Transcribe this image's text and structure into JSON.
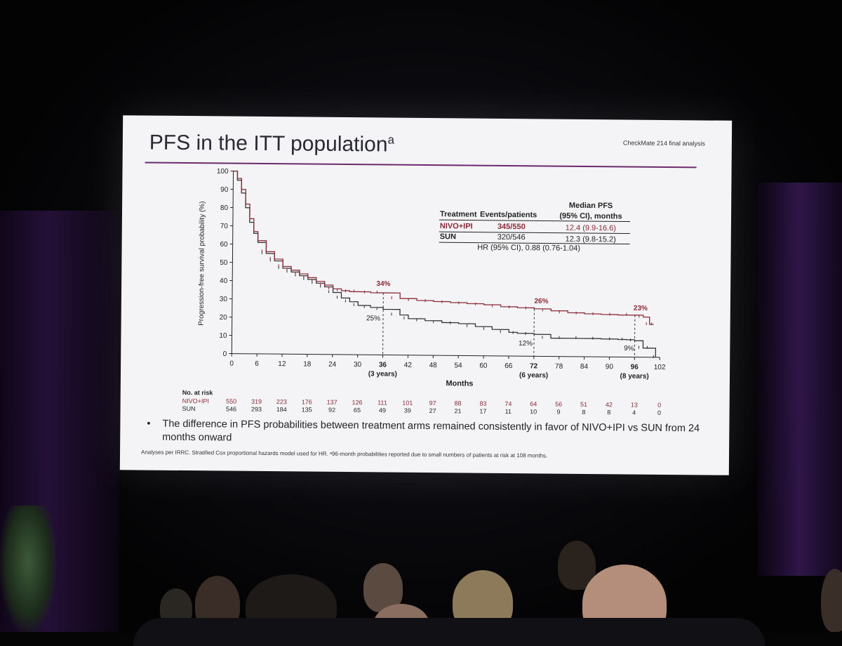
{
  "slide": {
    "title": "PFS in the ITT population",
    "title_sup": "a",
    "header_right": "CheckMate 214 final analysis",
    "bullet": "The difference in PFS probabilities between treatment arms remained consistently in favor of NIVO+IPI vs SUN from 24 months onward",
    "footnote": "Analyses per IRRC. Stratified Cox proportional hazards model used for HR. ᵃ96-month probabilities reported due to small numbers of patients at risk at 108 months."
  },
  "chart_data": {
    "type": "line",
    "title": "",
    "xlabel": "Months",
    "ylabel": "Progression-free survival probability (%)",
    "xlim": [
      0,
      102
    ],
    "ylim": [
      0,
      100
    ],
    "xticks": [
      0,
      6,
      12,
      18,
      24,
      30,
      36,
      42,
      48,
      54,
      60,
      66,
      72,
      78,
      84,
      90,
      96,
      102
    ],
    "yticks": [
      0,
      10,
      20,
      30,
      40,
      50,
      60,
      70,
      80,
      90,
      100
    ],
    "year_labels": [
      {
        "x": 36,
        "text": "(3 years)"
      },
      {
        "x": 72,
        "text": "(6 years)"
      },
      {
        "x": 96,
        "text": "(8 years)"
      }
    ],
    "colors": {
      "nivo": "#8b2a36",
      "sun": "#333333",
      "rule": "#6b2a6e"
    },
    "series": [
      {
        "name": "NIVO+IPI",
        "x": [
          0,
          1,
          2,
          3,
          4,
          5,
          6,
          8,
          10,
          12,
          14,
          16,
          18,
          20,
          22,
          24,
          26,
          28,
          30,
          33,
          36,
          40,
          44,
          48,
          52,
          56,
          60,
          64,
          68,
          72,
          76,
          80,
          84,
          88,
          92,
          96,
          98,
          99.5,
          100.5
        ],
        "y": [
          100,
          96,
          90,
          82,
          74,
          67,
          62,
          56,
          52,
          48,
          46,
          44,
          42,
          40,
          38,
          36,
          35,
          34.5,
          34.5,
          34,
          34,
          31,
          30,
          29.5,
          29,
          28.5,
          28,
          27,
          26.5,
          26,
          25,
          24,
          23.5,
          23.2,
          23,
          23,
          22,
          18,
          18
        ],
        "annotations": [
          {
            "x": 36,
            "y": 34,
            "text": "34%"
          },
          {
            "x": 72,
            "y": 26,
            "text": "26%"
          },
          {
            "x": 96,
            "y": 23,
            "text": "23%"
          }
        ]
      },
      {
        "name": "SUN",
        "x": [
          0,
          1,
          2,
          3,
          4,
          5,
          6,
          8,
          10,
          12,
          14,
          16,
          18,
          20,
          22,
          24,
          26,
          28,
          30,
          33,
          36,
          40,
          42,
          46,
          50,
          54,
          58,
          62,
          66,
          68,
          72,
          76,
          80,
          84,
          88,
          92,
          94,
          96,
          98,
          100,
          101
        ],
        "y": [
          100,
          95,
          88,
          80,
          72,
          66,
          61,
          55,
          51,
          47,
          45,
          43,
          41,
          39,
          37,
          34,
          31,
          29,
          27,
          26,
          25,
          22,
          20,
          19,
          18,
          17.5,
          16,
          14.5,
          13,
          12.5,
          12,
          10,
          10,
          10,
          9.8,
          9.6,
          9.5,
          9,
          5,
          5,
          0
        ],
        "annotations": [
          {
            "x": 36,
            "y": 25,
            "text": "25%"
          },
          {
            "x": 72,
            "y": 12,
            "text": "12%"
          },
          {
            "x": 96,
            "y": 9,
            "text": "9%"
          }
        ]
      }
    ],
    "summary_table": {
      "headers": [
        "Treatment",
        "Events/patients",
        "Median PFS\n(95% CI), months"
      ],
      "rows": [
        {
          "treatment": "NIVO+IPI",
          "events": "345/550",
          "median": "12.4 (9.9-16.6)"
        },
        {
          "treatment": "SUN",
          "events": "320/546",
          "median": "12.3 (9.8-15.2)"
        }
      ],
      "hr": "HR (95% CI), 0.88 (0.76-1.04)"
    },
    "at_risk": {
      "title": "No. at risk",
      "rows": [
        {
          "name": "NIVO+IPI",
          "values": [
            550,
            319,
            223,
            176,
            137,
            126,
            111,
            101,
            97,
            88,
            83,
            74,
            64,
            56,
            51,
            42,
            13,
            0
          ]
        },
        {
          "name": "SUN",
          "values": [
            546,
            293,
            184,
            135,
            92,
            65,
            49,
            39,
            27,
            21,
            17,
            11,
            10,
            9,
            8,
            8,
            4,
            0
          ]
        }
      ]
    }
  }
}
